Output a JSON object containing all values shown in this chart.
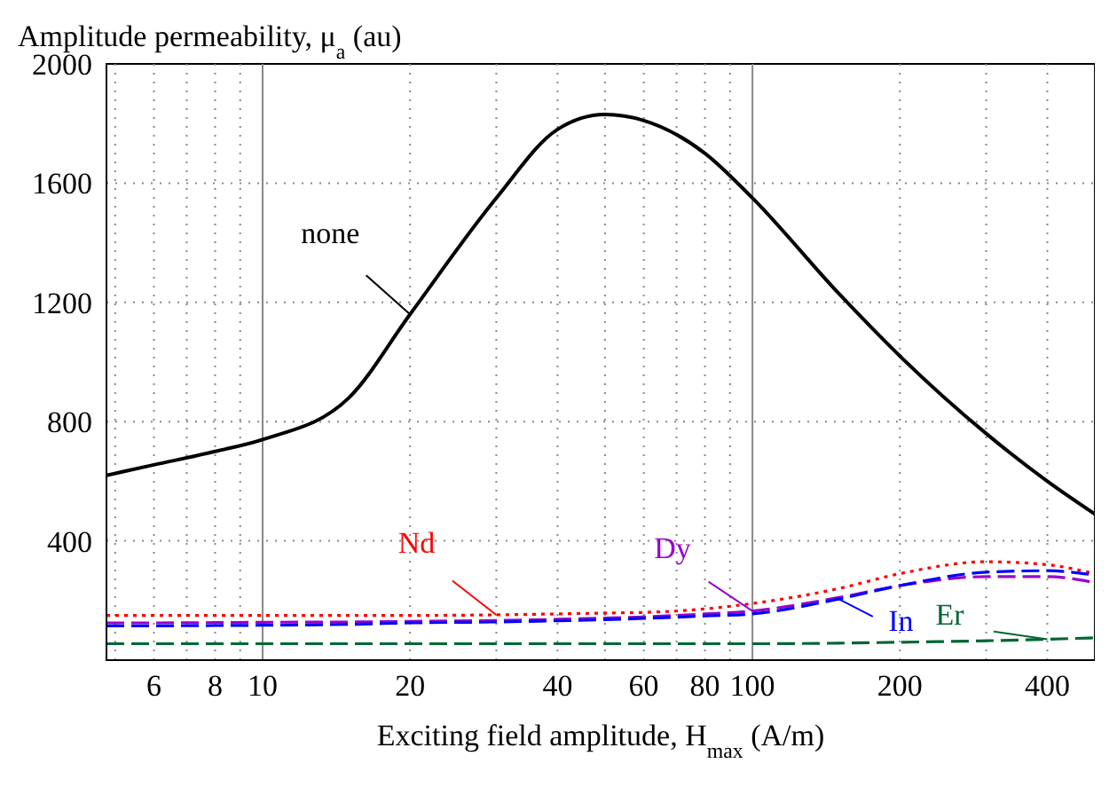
{
  "chart_data": {
    "type": "line",
    "ylabel": "Amplitude permeability, μ$_{a}$ (au)",
    "xlabel": "Exciting field amplitude, H$_{max}$ (A/m)",
    "log": "x",
    "x": [
      4.8,
      6,
      8,
      10,
      15,
      20,
      30,
      40,
      50,
      60,
      80,
      100,
      150,
      200,
      300,
      400,
      500
    ],
    "series": [
      {
        "name": "none",
        "color": "#000000",
        "line_style": "solid",
        "values": [
          620,
          655,
          700,
          740,
          880,
          1160,
          1550,
          1780,
          1830,
          1810,
          1700,
          1550,
          1230,
          1020,
          760,
          600,
          490
        ]
      },
      {
        "name": "Nd",
        "color": "#ff0000",
        "line_style": "dotted",
        "values": [
          150,
          150,
          150,
          150,
          150,
          150,
          152,
          155,
          158,
          160,
          172,
          190,
          240,
          290,
          330,
          320,
          290
        ]
      },
      {
        "name": "Dy",
        "color": "#9900cc",
        "line_style": "dashed",
        "values": [
          125,
          125,
          126,
          127,
          128,
          130,
          133,
          137,
          141,
          145,
          155,
          165,
          210,
          250,
          280,
          280,
          260
        ]
      },
      {
        "name": "In",
        "color": "#0000ff",
        "line_style": "dashed",
        "values": [
          115,
          115,
          116,
          117,
          120,
          125,
          128,
          132,
          136,
          140,
          148,
          155,
          205,
          250,
          295,
          300,
          285
        ]
      },
      {
        "name": "Er",
        "color": "#006633",
        "line_style": "dashed",
        "values": [
          55,
          55,
          55,
          55,
          55,
          55,
          55,
          55,
          55,
          55,
          55,
          55,
          57,
          60,
          65,
          70,
          75
        ]
      }
    ],
    "xlim": [
      4.8,
      500
    ],
    "ylim": [
      0,
      2000
    ],
    "xticks": [
      {
        "value": 5,
        "label": null
      },
      6,
      {
        "value": 7,
        "label": null
      },
      8,
      {
        "value": 9,
        "label": null
      },
      10,
      20,
      {
        "value": 30,
        "label": null
      },
      40,
      {
        "value": 50,
        "label": null
      },
      60,
      {
        "value": 70,
        "label": null
      },
      80,
      {
        "value": 90,
        "label": null
      },
      100,
      200,
      {
        "value": 300,
        "label": null
      },
      400
    ],
    "yticks": [
      400,
      800,
      1200,
      1600,
      2000
    ],
    "grid": true
  }
}
